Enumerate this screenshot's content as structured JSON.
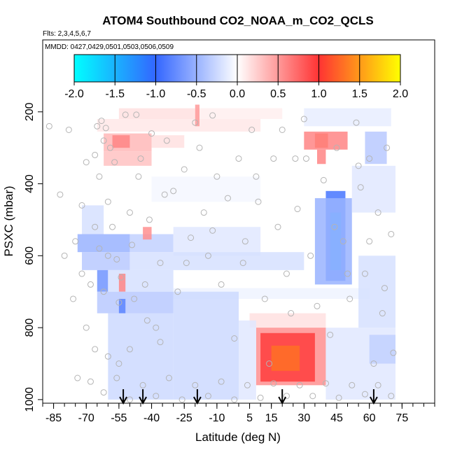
{
  "chart_data": {
    "type": "heatmap",
    "title": "ATOM4 Southbound CO2_NOAA_m_CO2_QCLS",
    "flights_label": "Flts: 2,3,4,5,6,7",
    "dates_label": "MMDD: 0427,0429,0501,0503,0506,0509",
    "xlabel": "Latitude (deg N)",
    "ylabel": "PSXC (mbar)",
    "xlim": [
      -90,
      90
    ],
    "ylim": [
      1010,
      0
    ],
    "x_ticks": [
      -85,
      -70,
      -55,
      -40,
      -25,
      -10,
      5,
      15,
      30,
      45,
      60,
      75
    ],
    "x_tick_labels": [
      "-85",
      "-70",
      "-55",
      "-40",
      "-25",
      "-10",
      "5",
      "15",
      "30",
      "45",
      "60",
      "75"
    ],
    "y_ticks": [
      200,
      400,
      600,
      800,
      1000
    ],
    "y_tick_labels": [
      "200",
      "400",
      "600",
      "800",
      "1000"
    ],
    "colorbar": {
      "range": [
        -2.0,
        2.0
      ],
      "ticks": [
        -2.0,
        -1.5,
        -1.0,
        -0.5,
        0.0,
        0.5,
        1.0,
        1.5,
        2.0
      ],
      "tick_labels": [
        "-2.0",
        "-1.5",
        "-1.0",
        "-0.5",
        "0.0",
        "0.5",
        "1.0",
        "1.5",
        "2.0"
      ],
      "colors": [
        "#00ffff",
        "#3366ff",
        "#ffffff",
        "#ff3333",
        "#ffff00"
      ]
    },
    "arrows_lat": [
      -53,
      -44,
      -19,
      20,
      62
    ],
    "cells": [
      {
        "lat": [
          -55,
          -20
        ],
        "p": [
          190,
          220
        ],
        "v": 0.15
      },
      {
        "lat": [
          -20,
          20
        ],
        "p": [
          190,
          220
        ],
        "v": 0.08
      },
      {
        "lat": [
          -65,
          10
        ],
        "p": [
          220,
          255
        ],
        "v": 0.12
      },
      {
        "lat": [
          30,
          70
        ],
        "p": [
          190,
          240
        ],
        "v": -0.12
      },
      {
        "lat": [
          -20,
          -18
        ],
        "p": [
          180,
          240
        ],
        "v": 0.5
      },
      {
        "lat": [
          -62,
          -40
        ],
        "p": [
          260,
          310
        ],
        "v": 0.35
      },
      {
        "lat": [
          -58,
          -50
        ],
        "p": [
          265,
          300
        ],
        "v": 0.6
      },
      {
        "lat": [
          -40,
          -25
        ],
        "p": [
          265,
          300
        ],
        "v": 0.15
      },
      {
        "lat": [
          35,
          41
        ],
        "p": [
          260,
          300
        ],
        "v": 1.2
      },
      {
        "lat": [
          30,
          50
        ],
        "p": [
          255,
          305
        ],
        "v": 0.6
      },
      {
        "lat": [
          58,
          68
        ],
        "p": [
          255,
          345
        ],
        "v": -0.35
      },
      {
        "lat": [
          -62,
          -40
        ],
        "p": [
          310,
          350
        ],
        "v": 0.3
      },
      {
        "lat": [
          36,
          40
        ],
        "p": [
          305,
          345
        ],
        "v": 0.6
      },
      {
        "lat": [
          40,
          49
        ],
        "p": [
          420,
          670
        ],
        "v": -0.9
      },
      {
        "lat": [
          42,
          47
        ],
        "p": [
          480,
          640
        ],
        "v": -1.4
      },
      {
        "lat": [
          35,
          52
        ],
        "p": [
          440,
          680
        ],
        "v": -0.5
      },
      {
        "lat": [
          52,
          72
        ],
        "p": [
          350,
          480
        ],
        "v": -0.15
      },
      {
        "lat": [
          -40,
          10
        ],
        "p": [
          380,
          450
        ],
        "v": -0.05
      },
      {
        "lat": [
          -72,
          -62
        ],
        "p": [
          460,
          540
        ],
        "v": -0.2
      },
      {
        "lat": [
          -74,
          -50
        ],
        "p": [
          540,
          590
        ],
        "v": -0.5
      },
      {
        "lat": [
          -50,
          -30
        ],
        "p": [
          540,
          590
        ],
        "v": -0.3
      },
      {
        "lat": [
          -30,
          10
        ],
        "p": [
          520,
          600
        ],
        "v": -0.15
      },
      {
        "lat": [
          -72,
          -50
        ],
        "p": [
          590,
          640
        ],
        "v": -0.35
      },
      {
        "lat": [
          -50,
          30
        ],
        "p": [
          590,
          640
        ],
        "v": -0.2
      },
      {
        "lat": [
          -44,
          -40
        ],
        "p": [
          520,
          555
        ],
        "v": 0.55
      },
      {
        "lat": [
          -65,
          -60
        ],
        "p": [
          640,
          700
        ],
        "v": -0.7
      },
      {
        "lat": [
          -60,
          -30
        ],
        "p": [
          640,
          700
        ],
        "v": -0.2
      },
      {
        "lat": [
          -55,
          -52
        ],
        "p": [
          650,
          700
        ],
        "v": 0.6
      },
      {
        "lat": [
          -30,
          60
        ],
        "p": [
          690,
          720
        ],
        "v": -0.08
      },
      {
        "lat": [
          55,
          72
        ],
        "p": [
          600,
          800
        ],
        "v": -0.2
      },
      {
        "lat": [
          -65,
          -30
        ],
        "p": [
          700,
          760
        ],
        "v": -0.35
      },
      {
        "lat": [
          -55,
          -52
        ],
        "p": [
          720,
          760
        ],
        "v": -0.8
      },
      {
        "lat": [
          -30,
          0
        ],
        "p": [
          700,
          1000
        ],
        "v": -0.25
      },
      {
        "lat": [
          -60,
          -30
        ],
        "p": [
          760,
          1000
        ],
        "v": -0.25
      },
      {
        "lat": [
          5,
          40
        ],
        "p": [
          760,
          800
        ],
        "v": 0.15
      },
      {
        "lat": [
          8,
          40
        ],
        "p": [
          800,
          960
        ],
        "v": 0.55
      },
      {
        "lat": [
          10,
          35
        ],
        "p": [
          815,
          950
        ],
        "v": 0.95
      },
      {
        "lat": [
          15,
          28
        ],
        "p": [
          850,
          920
        ],
        "v": 1.3
      },
      {
        "lat": [
          40,
          72
        ],
        "p": [
          800,
          1000
        ],
        "v": -0.15
      },
      {
        "lat": [
          60,
          72
        ],
        "p": [
          820,
          900
        ],
        "v": -0.3
      },
      {
        "lat": [
          0,
          8
        ],
        "p": [
          780,
          1000
        ],
        "v": -0.15
      }
    ],
    "points": [
      [
        -87,
        240
      ],
      [
        -82,
        430
      ],
      [
        -78,
        250
      ],
      [
        -75,
        560
      ],
      [
        -72,
        650
      ],
      [
        -70,
        340
      ],
      [
        -68,
        680
      ],
      [
        -65,
        240
      ],
      [
        -64,
        380
      ],
      [
        -62,
        280
      ],
      [
        -60,
        450
      ],
      [
        -58,
        520
      ],
      [
        -56,
        610
      ],
      [
        -55,
        730
      ],
      [
        -52,
        208
      ],
      [
        -50,
        480
      ],
      [
        -49,
        570
      ],
      [
        -47,
        208
      ],
      [
        -45,
        330
      ],
      [
        -43,
        680
      ],
      [
        -41,
        500
      ],
      [
        -38,
        800
      ],
      [
        -36,
        620
      ],
      [
        -33,
        280
      ],
      [
        -30,
        420
      ],
      [
        -28,
        700
      ],
      [
        -25,
        360
      ],
      [
        -22,
        550
      ],
      [
        -20,
        230
      ],
      [
        -18,
        300
      ],
      [
        -16,
        480
      ],
      [
        -14,
        600
      ],
      [
        -12,
        210
      ],
      [
        -10,
        380
      ],
      [
        -8,
        680
      ],
      [
        -5,
        440
      ],
      [
        -2,
        830
      ],
      [
        0,
        330
      ],
      [
        3,
        560
      ],
      [
        6,
        250
      ],
      [
        9,
        450
      ],
      [
        12,
        720
      ],
      [
        14,
        900
      ],
      [
        16,
        330
      ],
      [
        18,
        520
      ],
      [
        20,
        250
      ],
      [
        22,
        650
      ],
      [
        24,
        760
      ],
      [
        27,
        470
      ],
      [
        30,
        220
      ],
      [
        33,
        600
      ],
      [
        36,
        740
      ],
      [
        39,
        390
      ],
      [
        42,
        820
      ],
      [
        45,
        300
      ],
      [
        48,
        560
      ],
      [
        51,
        720
      ],
      [
        54,
        230
      ],
      [
        56,
        410
      ],
      [
        58,
        650
      ],
      [
        60,
        330
      ],
      [
        62,
        900
      ],
      [
        64,
        480
      ],
      [
        66,
        760
      ],
      [
        68,
        300
      ],
      [
        70,
        540
      ],
      [
        71,
        870
      ],
      [
        -74,
        940
      ],
      [
        -68,
        950
      ],
      [
        -62,
        980
      ],
      [
        -56,
        940
      ],
      [
        -50,
        1000
      ],
      [
        -44,
        960
      ],
      [
        -38,
        990
      ],
      [
        -32,
        940
      ],
      [
        -26,
        1000
      ],
      [
        -20,
        960
      ],
      [
        -14,
        990
      ],
      [
        -8,
        950
      ],
      [
        -2,
        1000
      ],
      [
        4,
        960
      ],
      [
        10,
        995
      ],
      [
        16,
        955
      ],
      [
        22,
        990
      ],
      [
        28,
        960
      ],
      [
        34,
        990
      ],
      [
        40,
        955
      ],
      [
        46,
        995
      ],
      [
        52,
        960
      ],
      [
        58,
        985
      ],
      [
        64,
        960
      ],
      [
        70,
        990
      ],
      [
        -72,
        460
      ],
      [
        -66,
        520
      ],
      [
        -60,
        600
      ],
      [
        -54,
        660
      ],
      [
        -48,
        720
      ],
      [
        -42,
        780
      ],
      [
        -36,
        840
      ],
      [
        -63,
        225
      ],
      [
        -61,
        245
      ],
      [
        -59,
        300
      ],
      [
        -57,
        340
      ],
      [
        -66,
        320
      ],
      [
        -64,
        580
      ],
      [
        -62,
        700
      ],
      [
        -46,
        380
      ],
      [
        -40,
        260
      ],
      [
        -34,
        430
      ],
      [
        -24,
        620
      ],
      [
        -12,
        530
      ],
      [
        2,
        620
      ],
      [
        8,
        380
      ],
      [
        26,
        330
      ],
      [
        31,
        330
      ],
      [
        44,
        520
      ],
      [
        50,
        650
      ],
      [
        55,
        350
      ],
      [
        60,
        560
      ],
      [
        67,
        690
      ],
      [
        -80,
        600
      ],
      [
        -76,
        720
      ],
      [
        -70,
        800
      ],
      [
        -66,
        860
      ],
      [
        -60,
        880
      ],
      [
        -55,
        900
      ],
      [
        -50,
        860
      ]
    ]
  }
}
